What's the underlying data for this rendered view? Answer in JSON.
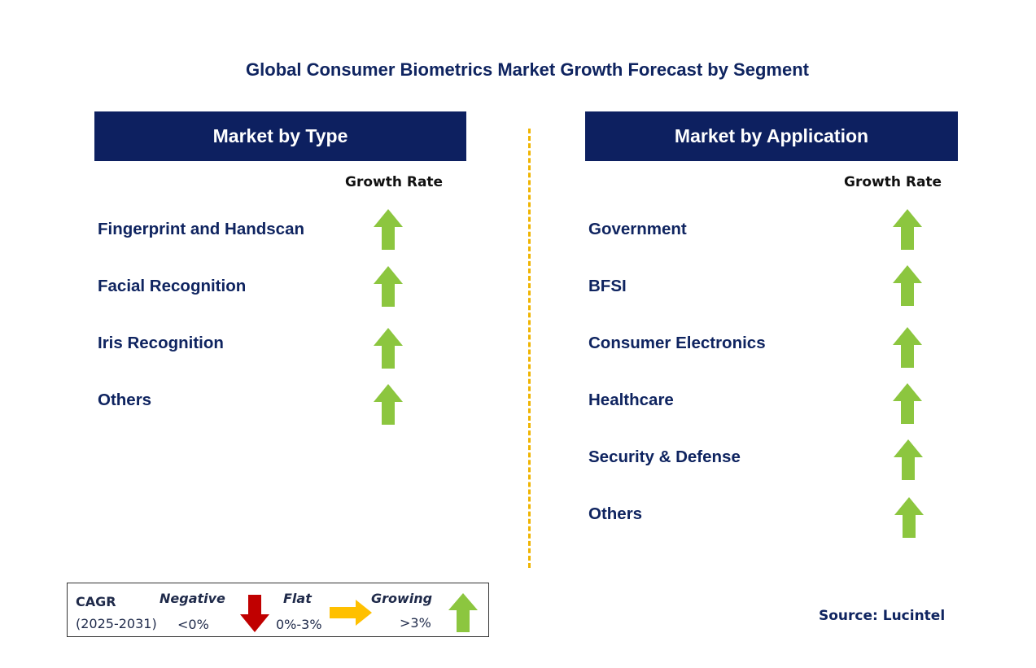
{
  "title": "Global Consumer Biometrics Market Growth Forecast by Segment",
  "colors": {
    "header_bg": "#0d2060",
    "text_navy": "#0f2460",
    "growing_arrow": "#8cc63f",
    "negative_arrow": "#c00000",
    "flat_arrow": "#ffc000",
    "divider": "#f0b400"
  },
  "type_panel": {
    "header": "Market by Type",
    "growth_rate_label": "Growth Rate",
    "rows": [
      {
        "label": "Fingerprint and Handscan",
        "trend": "growing",
        "icon": "up-arrow-icon"
      },
      {
        "label": "Facial Recognition",
        "trend": "growing",
        "icon": "up-arrow-icon"
      },
      {
        "label": "Iris Recognition",
        "trend": "growing",
        "icon": "up-arrow-icon"
      },
      {
        "label": "Others",
        "trend": "growing",
        "icon": "up-arrow-icon"
      }
    ]
  },
  "application_panel": {
    "header": "Market by Application",
    "growth_rate_label": "Growth Rate",
    "rows": [
      {
        "label": "Government",
        "trend": "growing",
        "icon": "up-arrow-icon"
      },
      {
        "label": "BFSI",
        "trend": "growing",
        "icon": "up-arrow-icon"
      },
      {
        "label": "Consumer Electronics",
        "trend": "growing",
        "icon": "up-arrow-icon"
      },
      {
        "label": "Healthcare",
        "trend": "growing",
        "icon": "up-arrow-icon"
      },
      {
        "label": "Security & Defense",
        "trend": "growing",
        "icon": "up-arrow-icon"
      },
      {
        "label": "Others",
        "trend": "growing",
        "icon": "up-arrow-icon"
      }
    ]
  },
  "legend": {
    "cagr_label": "CAGR",
    "period": "(2025-2031)",
    "negative": {
      "label": "Negative",
      "range": "<0%",
      "icon": "down-arrow-icon"
    },
    "flat": {
      "label": "Flat",
      "range": "0%-3%",
      "icon": "right-arrow-icon"
    },
    "growing": {
      "label": "Growing",
      "range": ">3%",
      "icon": "up-arrow-icon"
    }
  },
  "source": "Source: Lucintel"
}
